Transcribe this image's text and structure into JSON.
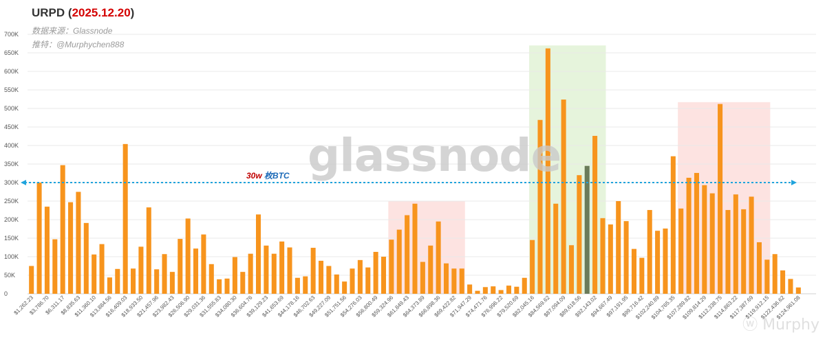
{
  "header": {
    "title_prefix": "URPD (",
    "title_date": "2025.12.20",
    "title_suffix": ")",
    "source": "数据来源：Glassnode",
    "author": "推特：@Murphychen888"
  },
  "watermark": {
    "main": "glassnode",
    "corner": "Murphy"
  },
  "annotation": {
    "value": "30w",
    "unit": " 枚BTC"
  },
  "colors": {
    "bar": "#f7941d",
    "highlight_bar": "#6b7b5a",
    "ref_line": "#1fa3dc",
    "red_zone": "#fde3e1",
    "green_zone": "#e6f4dc",
    "grid": "#e9e9e9"
  },
  "chart_data": {
    "type": "bar",
    "title": "URPD (2025.12.20)",
    "ylim": [
      0,
      700000
    ],
    "yticks": [
      0,
      50000,
      100000,
      150000,
      200000,
      250000,
      300000,
      350000,
      400000,
      450000,
      500000,
      550000,
      600000,
      650000,
      700000
    ],
    "ytick_labels": [
      "0",
      "50K",
      "100K",
      "150K",
      "200K",
      "250K",
      "300K",
      "350K",
      "400K",
      "450K",
      "500K",
      "550K",
      "600K",
      "650K",
      "700K"
    ],
    "grid": true,
    "reference_line": {
      "value": 300000,
      "label": "30w 枚BTC"
    },
    "highlight_index": 71,
    "shaded_ranges": [
      {
        "from_index": 46,
        "to_index": 55,
        "ymax": 250000,
        "color": "red"
      },
      {
        "from_index": 64,
        "to_index": 73,
        "ymax": 670000,
        "color": "green"
      },
      {
        "from_index": 83,
        "to_index": 94,
        "ymax": 517000,
        "color": "red"
      }
    ],
    "categories": [
      "$1,262.23",
      "",
      "$3,786.70",
      "",
      "$6,311.17",
      "",
      "$8,835.63",
      "",
      "$11,360.10",
      "",
      "$13,884.56",
      "",
      "$16,409.03",
      "",
      "$18,933.50",
      "",
      "$21,457.96",
      "",
      "$23,982.43",
      "",
      "$26,506.90",
      "",
      "$29,031.36",
      "",
      "$31,555.83",
      "",
      "$34,080.30",
      "",
      "$36,604.76",
      "",
      "$39,129.23",
      "",
      "$41,653.69",
      "",
      "$44,178.16",
      "",
      "$46,702.63",
      "",
      "$49,227.09",
      "",
      "$51,751.56",
      "",
      "$54,276.03",
      "",
      "$56,800.49",
      "",
      "$59,324.96",
      "",
      "$61,849.43",
      "",
      "$64,373.89",
      "",
      "$66,898.36",
      "",
      "$69,422.82",
      "",
      "$71,947.29",
      "",
      "$74,471.76",
      "",
      "$76,996.22",
      "",
      "$79,520.69",
      "",
      "$82,045.16",
      "",
      "$84,569.62",
      "",
      "$87,094.09",
      "",
      "$89,618.56",
      "",
      "$92,143.02",
      "",
      "$94,667.49",
      "",
      "$97,191.95",
      "",
      "$99,716.42",
      "",
      "$102,240.89",
      "",
      "$104,765.35",
      "",
      "$107,289.82",
      "",
      "$109,814.29",
      "",
      "$112,338.75",
      "",
      "$114,863.22",
      "",
      "$117,387.69",
      "",
      "$119,912.15",
      "",
      "$122,436.62",
      "",
      "$124,961.08"
    ],
    "values": [
      75000,
      300000,
      235000,
      147000,
      347000,
      247000,
      275000,
      191000,
      106000,
      134000,
      44000,
      67000,
      404000,
      68000,
      127000,
      233000,
      66000,
      107000,
      59000,
      148000,
      203000,
      122000,
      160000,
      80000,
      39000,
      41000,
      99000,
      59000,
      108000,
      214000,
      130000,
      108000,
      141000,
      125000,
      43000,
      47000,
      124000,
      89000,
      75000,
      52000,
      33000,
      68000,
      91000,
      71000,
      113000,
      100000,
      146000,
      173000,
      212000,
      243000,
      86000,
      130000,
      195000,
      82000,
      68000,
      68000,
      25000,
      8000,
      18000,
      20000,
      10000,
      22000,
      19000,
      43000,
      145000,
      469000,
      662000,
      243000,
      524000,
      131000,
      320000,
      345000,
      426000,
      204000,
      187000,
      250000,
      196000,
      121000,
      97000,
      226000,
      170000,
      176000,
      371000,
      230000,
      313000,
      326000,
      293000,
      271000,
      512000,
      226000,
      268000,
      228000,
      262000,
      139000,
      92000,
      107000,
      63000,
      40000,
      17000
    ]
  }
}
